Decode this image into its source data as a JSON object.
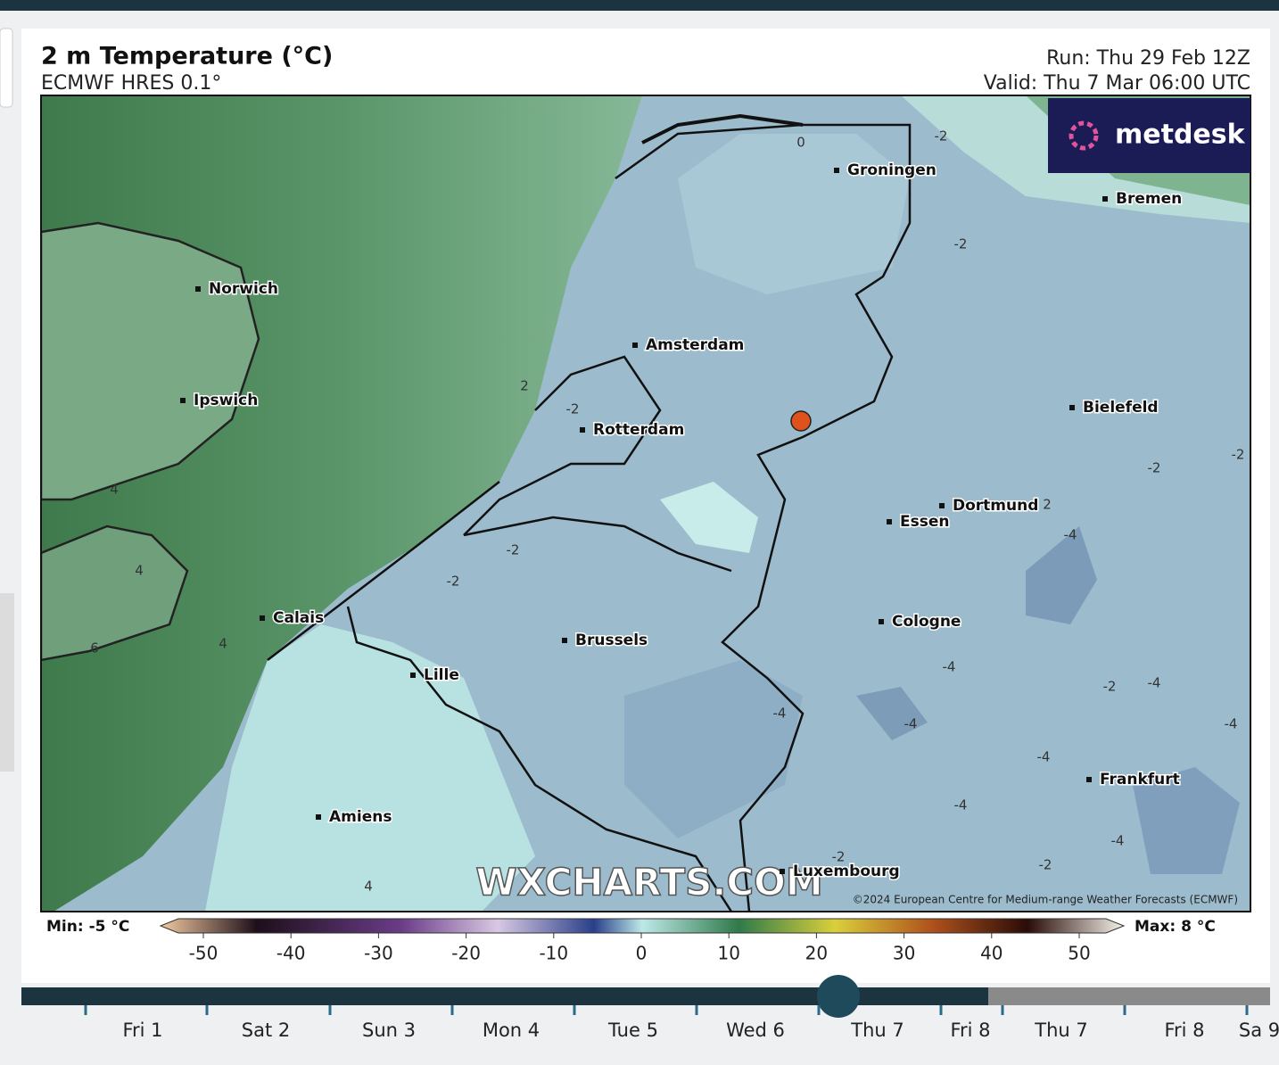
{
  "header": {
    "title": "2 m Temperature (°C)",
    "subtitle": "ECMWF HRES 0.1°",
    "run": "Run: Thu 29 Feb 12Z",
    "valid": "Valid: Thu 7 Mar 06:00 UTC"
  },
  "logo": "metdesk",
  "cities": [
    "Groningen",
    "Bremen",
    "Norwich",
    "Amsterdam",
    "Ipswich",
    "Rotterdam",
    "Bielefeld",
    "Dortmund",
    "Essen",
    "Calais",
    "Cologne",
    "Brussels",
    "Lille",
    "Frankfurt",
    "Amiens",
    "Luxembourg"
  ],
  "contour_labels": [
    -2,
    -2,
    0,
    2,
    -2,
    4,
    4,
    4,
    6,
    4,
    -2,
    -2,
    2,
    -4,
    -2,
    -2,
    -4,
    -4,
    -4,
    -2,
    -4,
    -4,
    -4,
    -4,
    -4,
    -2,
    -2
  ],
  "watermark": "WXCHARTS.COM",
  "copyright": "©2024 European Centre for Medium-range Weather Forecasts (ECMWF)",
  "colorbar": {
    "min_label": "Min: -5 °C",
    "max_label": "Max: 8 °C",
    "ticks": [
      -50,
      -40,
      -30,
      -20,
      -10,
      0,
      10,
      20,
      30,
      40,
      50
    ]
  },
  "timeline": {
    "labels": [
      "Fri 1",
      "Sat 2",
      "Sun 3",
      "Mon 4",
      "Tue 5",
      "Wed 6",
      "Thu 7",
      "Fri 8",
      "Thu 7",
      "Fri 8",
      "Sa 9"
    ]
  }
}
